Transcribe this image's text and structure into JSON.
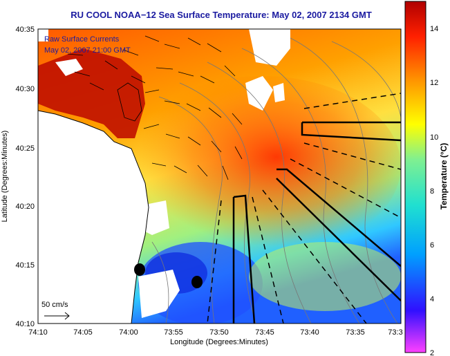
{
  "title": "RU COOL  NOAA−12  Sea Surface Temperature:  May 02, 2007 2134 GMT",
  "overlay_label_1": "Raw Surface Currents",
  "overlay_label_2": "May 02, 2007 21:00 GMT",
  "scale_label": "50 cm/s",
  "axes": {
    "xlabel": "Longitude (Degrees:Minutes)",
    "ylabel": "Latitude (Degrees:Minutes)",
    "xticks": [
      "74:10",
      "74:05",
      "74:00",
      "73:55",
      "73:50",
      "73:45",
      "73:40",
      "73:35",
      "73:3"
    ],
    "yticks": [
      "40:35",
      "40:30",
      "40:25",
      "40:20",
      "40:15",
      "40:10"
    ]
  },
  "colorbar": {
    "label": "Temperature (°C)",
    "ticks": [
      "14",
      "12",
      "10",
      "8",
      "6",
      "4",
      "2"
    ],
    "range": [
      2,
      15
    ],
    "stops": [
      "#ff40ff",
      "#3010ff",
      "#00a0ff",
      "#20e0d0",
      "#80f090",
      "#ffff00",
      "#ff9000",
      "#ff2000",
      "#b00000"
    ]
  },
  "markers": [
    "buoy-a",
    "buoy-b"
  ]
}
